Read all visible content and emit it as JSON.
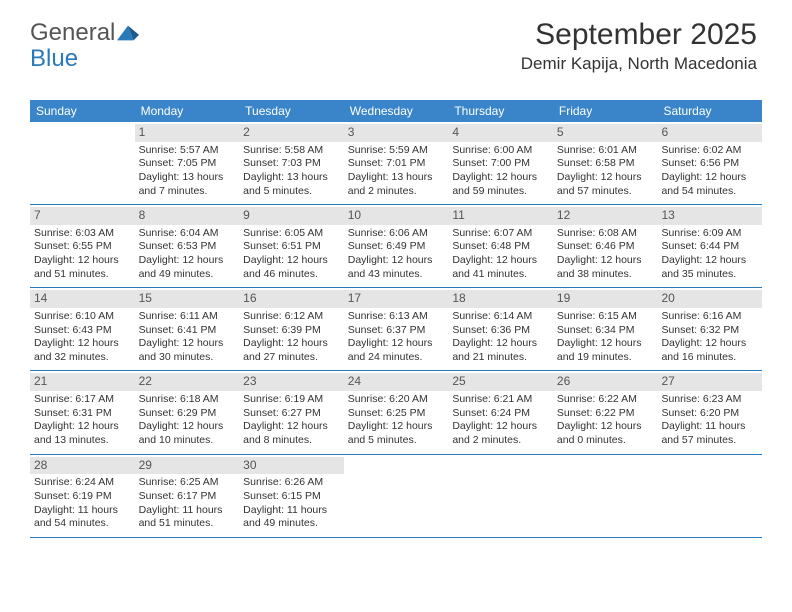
{
  "brand": {
    "word1": "General",
    "word2": "Blue",
    "color_primary": "#2a7ab9",
    "color_text": "#555555"
  },
  "header": {
    "title": "September 2025",
    "location": "Demir Kapija, North Macedonia",
    "title_color": "#333333",
    "title_fontsize": 30,
    "location_fontsize": 17
  },
  "calendar": {
    "header_bg": "#3a85c9",
    "header_text_color": "#ffffff",
    "daynum_bg": "#e5e5e5",
    "daynum_color": "#555555",
    "row_border_color": "#2a7ab9",
    "cell_fontsize": 10.5,
    "weekdays": [
      "Sunday",
      "Monday",
      "Tuesday",
      "Wednesday",
      "Thursday",
      "Friday",
      "Saturday"
    ],
    "weeks": [
      [
        {
          "blank": true
        },
        {
          "day": "1",
          "sunrise": "Sunrise: 5:57 AM",
          "sunset": "Sunset: 7:05 PM",
          "daylight1": "Daylight: 13 hours",
          "daylight2": "and 7 minutes."
        },
        {
          "day": "2",
          "sunrise": "Sunrise: 5:58 AM",
          "sunset": "Sunset: 7:03 PM",
          "daylight1": "Daylight: 13 hours",
          "daylight2": "and 5 minutes."
        },
        {
          "day": "3",
          "sunrise": "Sunrise: 5:59 AM",
          "sunset": "Sunset: 7:01 PM",
          "daylight1": "Daylight: 13 hours",
          "daylight2": "and 2 minutes."
        },
        {
          "day": "4",
          "sunrise": "Sunrise: 6:00 AM",
          "sunset": "Sunset: 7:00 PM",
          "daylight1": "Daylight: 12 hours",
          "daylight2": "and 59 minutes."
        },
        {
          "day": "5",
          "sunrise": "Sunrise: 6:01 AM",
          "sunset": "Sunset: 6:58 PM",
          "daylight1": "Daylight: 12 hours",
          "daylight2": "and 57 minutes."
        },
        {
          "day": "6",
          "sunrise": "Sunrise: 6:02 AM",
          "sunset": "Sunset: 6:56 PM",
          "daylight1": "Daylight: 12 hours",
          "daylight2": "and 54 minutes."
        }
      ],
      [
        {
          "day": "7",
          "sunrise": "Sunrise: 6:03 AM",
          "sunset": "Sunset: 6:55 PM",
          "daylight1": "Daylight: 12 hours",
          "daylight2": "and 51 minutes."
        },
        {
          "day": "8",
          "sunrise": "Sunrise: 6:04 AM",
          "sunset": "Sunset: 6:53 PM",
          "daylight1": "Daylight: 12 hours",
          "daylight2": "and 49 minutes."
        },
        {
          "day": "9",
          "sunrise": "Sunrise: 6:05 AM",
          "sunset": "Sunset: 6:51 PM",
          "daylight1": "Daylight: 12 hours",
          "daylight2": "and 46 minutes."
        },
        {
          "day": "10",
          "sunrise": "Sunrise: 6:06 AM",
          "sunset": "Sunset: 6:49 PM",
          "daylight1": "Daylight: 12 hours",
          "daylight2": "and 43 minutes."
        },
        {
          "day": "11",
          "sunrise": "Sunrise: 6:07 AM",
          "sunset": "Sunset: 6:48 PM",
          "daylight1": "Daylight: 12 hours",
          "daylight2": "and 41 minutes."
        },
        {
          "day": "12",
          "sunrise": "Sunrise: 6:08 AM",
          "sunset": "Sunset: 6:46 PM",
          "daylight1": "Daylight: 12 hours",
          "daylight2": "and 38 minutes."
        },
        {
          "day": "13",
          "sunrise": "Sunrise: 6:09 AM",
          "sunset": "Sunset: 6:44 PM",
          "daylight1": "Daylight: 12 hours",
          "daylight2": "and 35 minutes."
        }
      ],
      [
        {
          "day": "14",
          "sunrise": "Sunrise: 6:10 AM",
          "sunset": "Sunset: 6:43 PM",
          "daylight1": "Daylight: 12 hours",
          "daylight2": "and 32 minutes."
        },
        {
          "day": "15",
          "sunrise": "Sunrise: 6:11 AM",
          "sunset": "Sunset: 6:41 PM",
          "daylight1": "Daylight: 12 hours",
          "daylight2": "and 30 minutes."
        },
        {
          "day": "16",
          "sunrise": "Sunrise: 6:12 AM",
          "sunset": "Sunset: 6:39 PM",
          "daylight1": "Daylight: 12 hours",
          "daylight2": "and 27 minutes."
        },
        {
          "day": "17",
          "sunrise": "Sunrise: 6:13 AM",
          "sunset": "Sunset: 6:37 PM",
          "daylight1": "Daylight: 12 hours",
          "daylight2": "and 24 minutes."
        },
        {
          "day": "18",
          "sunrise": "Sunrise: 6:14 AM",
          "sunset": "Sunset: 6:36 PM",
          "daylight1": "Daylight: 12 hours",
          "daylight2": "and 21 minutes."
        },
        {
          "day": "19",
          "sunrise": "Sunrise: 6:15 AM",
          "sunset": "Sunset: 6:34 PM",
          "daylight1": "Daylight: 12 hours",
          "daylight2": "and 19 minutes."
        },
        {
          "day": "20",
          "sunrise": "Sunrise: 6:16 AM",
          "sunset": "Sunset: 6:32 PM",
          "daylight1": "Daylight: 12 hours",
          "daylight2": "and 16 minutes."
        }
      ],
      [
        {
          "day": "21",
          "sunrise": "Sunrise: 6:17 AM",
          "sunset": "Sunset: 6:31 PM",
          "daylight1": "Daylight: 12 hours",
          "daylight2": "and 13 minutes."
        },
        {
          "day": "22",
          "sunrise": "Sunrise: 6:18 AM",
          "sunset": "Sunset: 6:29 PM",
          "daylight1": "Daylight: 12 hours",
          "daylight2": "and 10 minutes."
        },
        {
          "day": "23",
          "sunrise": "Sunrise: 6:19 AM",
          "sunset": "Sunset: 6:27 PM",
          "daylight1": "Daylight: 12 hours",
          "daylight2": "and 8 minutes."
        },
        {
          "day": "24",
          "sunrise": "Sunrise: 6:20 AM",
          "sunset": "Sunset: 6:25 PM",
          "daylight1": "Daylight: 12 hours",
          "daylight2": "and 5 minutes."
        },
        {
          "day": "25",
          "sunrise": "Sunrise: 6:21 AM",
          "sunset": "Sunset: 6:24 PM",
          "daylight1": "Daylight: 12 hours",
          "daylight2": "and 2 minutes."
        },
        {
          "day": "26",
          "sunrise": "Sunrise: 6:22 AM",
          "sunset": "Sunset: 6:22 PM",
          "daylight1": "Daylight: 12 hours",
          "daylight2": "and 0 minutes."
        },
        {
          "day": "27",
          "sunrise": "Sunrise: 6:23 AM",
          "sunset": "Sunset: 6:20 PM",
          "daylight1": "Daylight: 11 hours",
          "daylight2": "and 57 minutes."
        }
      ],
      [
        {
          "day": "28",
          "sunrise": "Sunrise: 6:24 AM",
          "sunset": "Sunset: 6:19 PM",
          "daylight1": "Daylight: 11 hours",
          "daylight2": "and 54 minutes."
        },
        {
          "day": "29",
          "sunrise": "Sunrise: 6:25 AM",
          "sunset": "Sunset: 6:17 PM",
          "daylight1": "Daylight: 11 hours",
          "daylight2": "and 51 minutes."
        },
        {
          "day": "30",
          "sunrise": "Sunrise: 6:26 AM",
          "sunset": "Sunset: 6:15 PM",
          "daylight1": "Daylight: 11 hours",
          "daylight2": "and 49 minutes."
        },
        {
          "blank": true
        },
        {
          "blank": true
        },
        {
          "blank": true
        },
        {
          "blank": true
        }
      ]
    ]
  }
}
